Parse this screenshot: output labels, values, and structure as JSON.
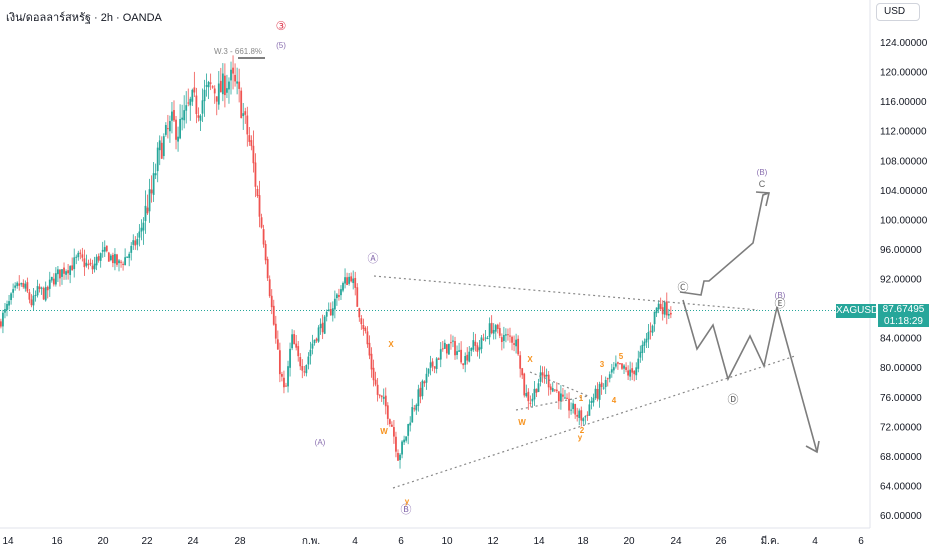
{
  "header": {
    "title": "เงิน/ดอลลาร์สหรัฐ · 2h · OANDA",
    "currency": "USD"
  },
  "price_tag": {
    "symbol": "XAGUSD",
    "price": "87.67495",
    "countdown": "01:18:29"
  },
  "colors": {
    "up": "#26a69a",
    "down": "#ef5350",
    "projection": "#7d7d7d",
    "wave_orange": "#f7931e",
    "wave_purple": "#8a6fb0",
    "wave_pink": "#e0465a",
    "fib": "#888888"
  },
  "chart_data": {
    "type": "candlestick",
    "symbol": "XAGUSD",
    "timeframe": "2h",
    "y_range": [
      58,
      126
    ],
    "y_ticks": [
      "124.00000",
      "120.00000",
      "116.00000",
      "112.00000",
      "108.00000",
      "104.00000",
      "100.00000",
      "96.00000",
      "92.00000",
      "88.00000",
      "84.00000",
      "80.00000",
      "76.00000",
      "72.00000",
      "68.00000",
      "64.00000",
      "60.00000"
    ],
    "x_ticks": [
      "14",
      "16",
      "20",
      "22",
      "24",
      "28",
      "ก.พ.",
      "4",
      "6",
      "10",
      "12",
      "14",
      "18",
      "20",
      "24",
      "26",
      "มี.ค.",
      "4",
      "6"
    ],
    "last_price": 87.67495,
    "price_path": [
      [
        0,
        86
      ],
      [
        1,
        87.5
      ],
      [
        2,
        89.5
      ],
      [
        3,
        91.2
      ],
      [
        4,
        90.5
      ],
      [
        5,
        88.5
      ],
      [
        6,
        90.5
      ],
      [
        7,
        89.8
      ],
      [
        8,
        91.8
      ],
      [
        9,
        92.6
      ],
      [
        10,
        93.4
      ],
      [
        11,
        93.8
      ],
      [
        12,
        94.8
      ],
      [
        13,
        94.0
      ],
      [
        14,
        93.2
      ],
      [
        15,
        95.0
      ],
      [
        16,
        95.4
      ],
      [
        17,
        94.8
      ],
      [
        18,
        93.8
      ],
      [
        19,
        94.8
      ],
      [
        20,
        96.0
      ],
      [
        21,
        97.5
      ],
      [
        22,
        101.0
      ],
      [
        23,
        103.5
      ],
      [
        24,
        109.0
      ],
      [
        25,
        111.0
      ],
      [
        26,
        113.0
      ],
      [
        27,
        112.0
      ],
      [
        28,
        114.0
      ],
      [
        29,
        116.0
      ],
      [
        30,
        115.0
      ],
      [
        31,
        117.0
      ],
      [
        32,
        118.0
      ],
      [
        33,
        117.0
      ],
      [
        34,
        118.5
      ],
      [
        35,
        119.0
      ],
      [
        36,
        117.0
      ],
      [
        37,
        113.0
      ],
      [
        38,
        109.0
      ],
      [
        39,
        102.0
      ],
      [
        40,
        96.0
      ],
      [
        41,
        88.0
      ],
      [
        42,
        81.0
      ],
      [
        43,
        76.0
      ],
      [
        44,
        84.0
      ],
      [
        45,
        81.0
      ],
      [
        46,
        80.0
      ],
      [
        47,
        83.0
      ],
      [
        48,
        85.0
      ],
      [
        49,
        86.0
      ],
      [
        50,
        88.0
      ],
      [
        51,
        90.0
      ],
      [
        52,
        91.5
      ],
      [
        53,
        92.5
      ],
      [
        54,
        88.0
      ],
      [
        55,
        85.0
      ],
      [
        56,
        80.0
      ],
      [
        57,
        76.0
      ],
      [
        58,
        75.0
      ],
      [
        59,
        72.5
      ],
      [
        60,
        68.0
      ],
      [
        61,
        70.0
      ],
      [
        62,
        74.0
      ],
      [
        63,
        76.0
      ],
      [
        64,
        78.0
      ],
      [
        65,
        80.0
      ],
      [
        66,
        81.5
      ],
      [
        67,
        82.5
      ],
      [
        68,
        83.0
      ],
      [
        69,
        82.0
      ],
      [
        70,
        81.0
      ],
      [
        71,
        83.0
      ],
      [
        72,
        82.5
      ],
      [
        73,
        84.0
      ],
      [
        74,
        85.5
      ],
      [
        75,
        84.5
      ],
      [
        76,
        84.0
      ],
      [
        77,
        84.0
      ],
      [
        78,
        83.0
      ],
      [
        79,
        76.5
      ],
      [
        80,
        75.5
      ],
      [
        81,
        78.0
      ],
      [
        82,
        79.0
      ],
      [
        83,
        77.5
      ],
      [
        84,
        76.5
      ],
      [
        85,
        75.0
      ],
      [
        86,
        74.5
      ],
      [
        87,
        73.5
      ],
      [
        88,
        73.0
      ],
      [
        89,
        75.5
      ],
      [
        90,
        76.5
      ],
      [
        91,
        77.5
      ],
      [
        92,
        79.0
      ],
      [
        93,
        80.0
      ],
      [
        94,
        79.5
      ],
      [
        95,
        79.0
      ],
      [
        96,
        80.5
      ],
      [
        97,
        83.0
      ],
      [
        98,
        85.5
      ],
      [
        99,
        88.5
      ],
      [
        100,
        88.0
      ],
      [
        101,
        87.7
      ]
    ],
    "projection_upper": [
      [
        680,
        292
      ],
      [
        701,
        295
      ],
      [
        704,
        281
      ],
      [
        709,
        281
      ],
      [
        753,
        243
      ],
      [
        763,
        195
      ],
      [
        769,
        193
      ]
    ],
    "projection_lower": [
      [
        683,
        300
      ],
      [
        697,
        349
      ],
      [
        713,
        325
      ],
      [
        728,
        379
      ],
      [
        750,
        336
      ],
      [
        764,
        366
      ],
      [
        777,
        307
      ],
      [
        817,
        452
      ]
    ],
    "trendlines": [
      {
        "name": "triangle-upper",
        "from": [
          374,
          276
        ],
        "to": [
          758,
          310
        ]
      },
      {
        "name": "triangle-lower",
        "from": [
          393,
          488
        ],
        "to": [
          795,
          356
        ]
      },
      {
        "name": "wxy-upper",
        "from": [
          530,
          372
        ],
        "to": [
          588,
          396
        ]
      },
      {
        "name": "wxy-lower",
        "from": [
          516,
          410
        ],
        "to": [
          588,
          396
        ]
      }
    ],
    "fib_label": "W.3 - 661.8%",
    "wave_labels": [
      {
        "text": "③",
        "x": 281,
        "y": 30,
        "color": "pink",
        "size": 12
      },
      {
        "text": "(5)",
        "x": 281,
        "y": 48,
        "color": "purple",
        "size": 8
      },
      {
        "text": "Ⓐ",
        "x": 373,
        "y": 262,
        "color": "purple",
        "size": 11
      },
      {
        "text": "(A)",
        "x": 320,
        "y": 445,
        "color": "purple",
        "size": 8
      },
      {
        "text": "X",
        "x": 391,
        "y": 347,
        "color": "orange",
        "size": 8
      },
      {
        "text": "W",
        "x": 384,
        "y": 434,
        "color": "orange",
        "size": 8
      },
      {
        "text": "y",
        "x": 407,
        "y": 504,
        "color": "orange",
        "size": 8
      },
      {
        "text": "Ⓑ",
        "x": 406,
        "y": 513,
        "color": "purple",
        "size": 11
      },
      {
        "text": "X",
        "x": 530,
        "y": 362,
        "color": "orange",
        "size": 8
      },
      {
        "text": "W",
        "x": 522,
        "y": 425,
        "color": "orange",
        "size": 8
      },
      {
        "text": "1",
        "x": 581,
        "y": 401,
        "color": "orange",
        "size": 8
      },
      {
        "text": "2",
        "x": 582,
        "y": 433,
        "color": "orange",
        "size": 8
      },
      {
        "text": "y",
        "x": 580,
        "y": 440,
        "color": "orange",
        "size": 8
      },
      {
        "text": "3",
        "x": 602,
        "y": 367,
        "color": "orange",
        "size": 8
      },
      {
        "text": "4",
        "x": 614,
        "y": 403,
        "color": "orange",
        "size": 8
      },
      {
        "text": "5",
        "x": 621,
        "y": 359,
        "color": "orange",
        "size": 8
      },
      {
        "text": "Ⓒ",
        "x": 683,
        "y": 291,
        "color": "gray",
        "size": 11
      },
      {
        "text": "(B)",
        "x": 762,
        "y": 175,
        "color": "purple",
        "size": 8
      },
      {
        "text": "C",
        "x": 762,
        "y": 187,
        "color": "gray",
        "size": 9
      },
      {
        "text": "(B)",
        "x": 780,
        "y": 298,
        "color": "purple",
        "size": 8
      },
      {
        "text": "Ⓔ",
        "x": 780,
        "y": 307,
        "color": "gray",
        "size": 11
      },
      {
        "text": "Ⓓ",
        "x": 733,
        "y": 403,
        "color": "gray",
        "size": 11
      }
    ]
  }
}
